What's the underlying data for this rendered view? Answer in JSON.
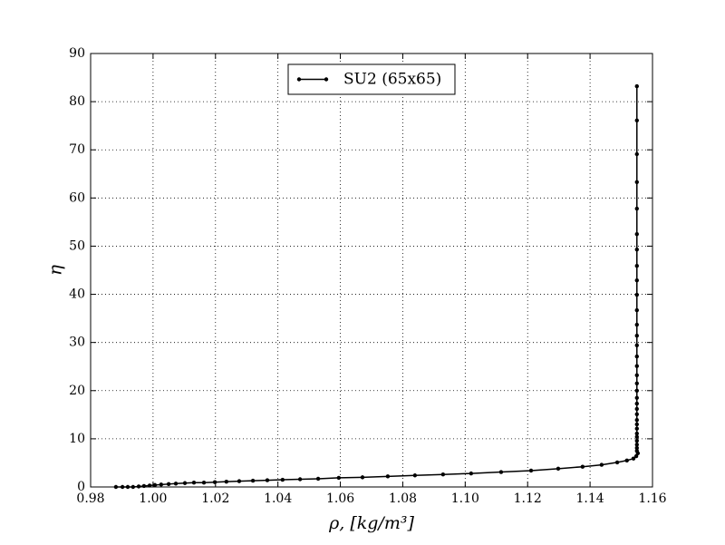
{
  "chart_data": {
    "type": "line",
    "xlabel": "ρ, [kg/m³]",
    "ylabel": "η",
    "xlim": [
      0.98,
      1.16
    ],
    "ylim": [
      0,
      90
    ],
    "xticks": [
      0.98,
      {
        "value": 1,
        "label": "1.00"
      },
      1.02,
      1.04,
      1.06,
      1.08,
      {
        "value": 1.1,
        "label": "1.10"
      },
      1.12,
      1.14,
      1.16
    ],
    "yticks": [
      0,
      10,
      20,
      30,
      40,
      50,
      60,
      70,
      80,
      90
    ],
    "grid": true,
    "legend": "upper center",
    "series": [
      {
        "name": "SU2 (65x65)",
        "color": "#000000",
        "x": [
          0.9881,
          0.9902,
          0.9919,
          0.9936,
          0.9954,
          0.9971,
          0.9989,
          1.0006,
          1.0026,
          1.005,
          1.0073,
          1.0102,
          1.0131,
          1.0163,
          1.0198,
          1.0235,
          1.0276,
          1.032,
          1.0366,
          1.0415,
          1.0471,
          1.0529,
          1.0595,
          1.0671,
          1.0752,
          1.0839,
          1.0929,
          1.1019,
          1.1115,
          1.1211,
          1.1298,
          1.1376,
          1.1437,
          1.1487,
          1.1518,
          1.1539,
          1.1548,
          1.1553,
          1.155,
          1.155,
          1.155,
          1.155,
          1.155,
          1.155,
          1.155,
          1.155,
          1.155,
          1.155,
          1.155,
          1.155,
          1.155,
          1.155,
          1.155,
          1.155,
          1.155,
          1.155,
          1.155,
          1.155,
          1.155,
          1.155,
          1.155,
          1.155,
          1.155,
          1.155,
          1.155,
          1.155,
          1.155,
          1.155,
          1.155,
          1.155
        ],
        "values": [
          0,
          0,
          0,
          0,
          0.1,
          0.2,
          0.3,
          0.4,
          0.5,
          0.6,
          0.7,
          0.8,
          0.9,
          0.9,
          1.0,
          1.1,
          1.2,
          1.3,
          1.4,
          1.5,
          1.6,
          1.7,
          1.9,
          2.0,
          2.2,
          2.4,
          2.6,
          2.8,
          3.1,
          3.4,
          3.8,
          4.2,
          4.6,
          5.1,
          5.5,
          5.9,
          6.4,
          7.0,
          7.5,
          8.1,
          8.8,
          9.6,
          10.4,
          11.1,
          12.1,
          13.0,
          13.9,
          15.1,
          16.2,
          17.3,
          18.5,
          20.0,
          21.5,
          23.2,
          25.1,
          27.1,
          29.4,
          31.4,
          33.7,
          36.7,
          39.9,
          42.9,
          45.9,
          49.3,
          52.5,
          57.8,
          63.3,
          69.1,
          76.1,
          83.2
        ]
      }
    ]
  }
}
